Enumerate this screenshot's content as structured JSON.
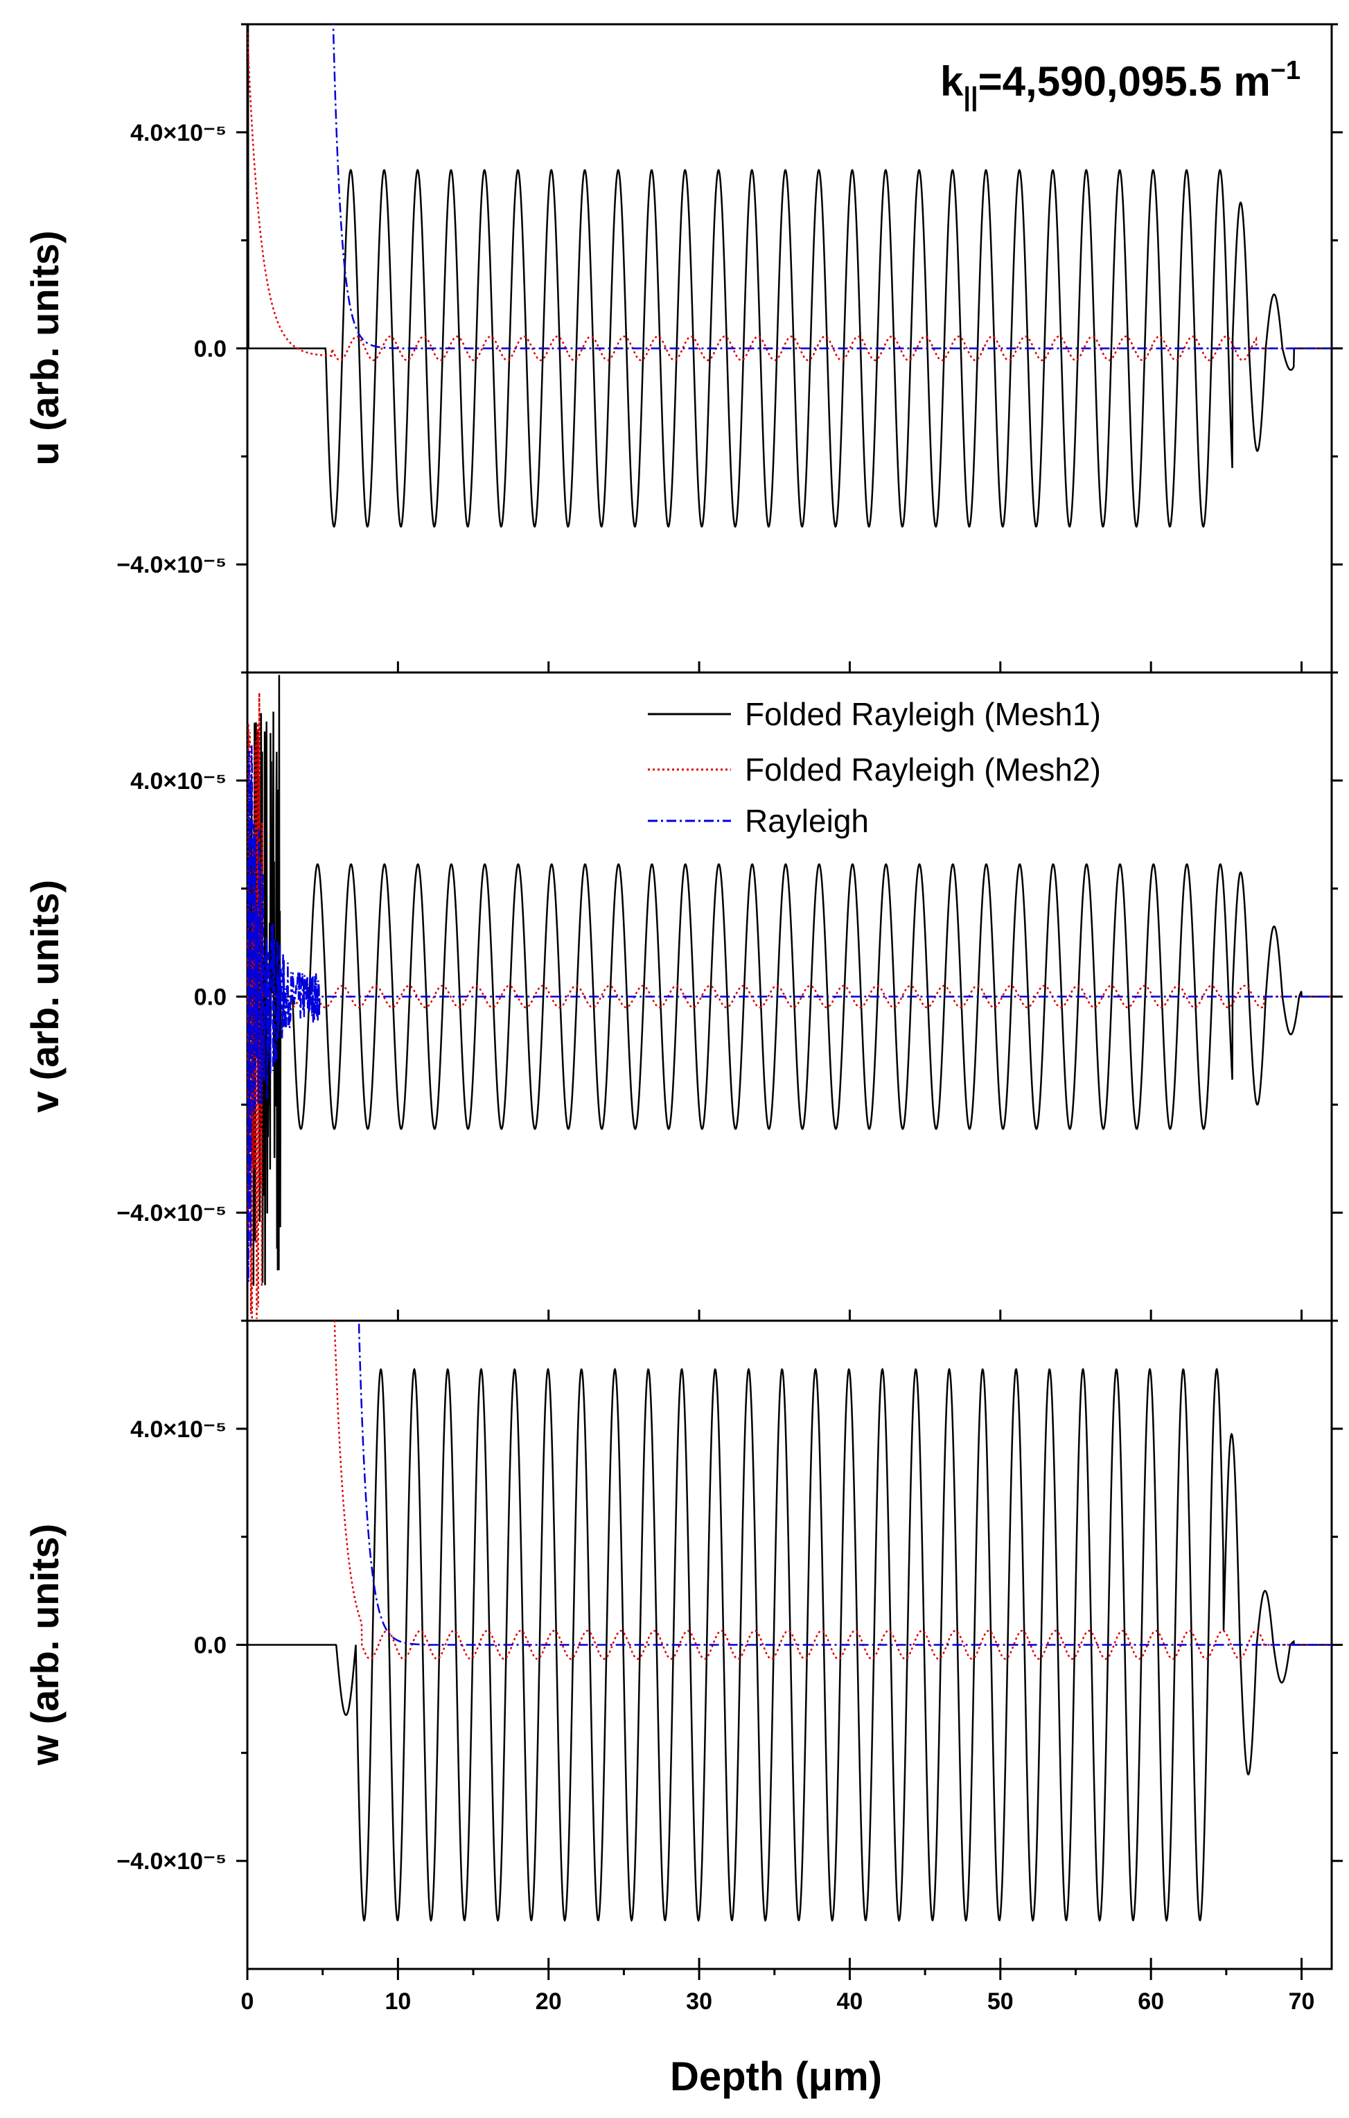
{
  "chart_data": {
    "type": "line",
    "xlabel": "Depth (μm)",
    "xlim": [
      0,
      72
    ],
    "xticks": [
      0,
      10,
      20,
      30,
      40,
      50,
      60,
      70
    ],
    "xtick_labels": [
      "0",
      "10",
      "20",
      "30",
      "40",
      "50",
      "60",
      "70"
    ],
    "annotation": {
      "prefix": "k",
      "subscript": "||",
      "value": "=4,590,095.5 m",
      "superscript": "−1"
    },
    "legend": {
      "location": "top-right of middle panel",
      "entries": [
        {
          "name": "Folded Rayleigh (Mesh1)",
          "color": "#000000",
          "dash": "solid"
        },
        {
          "name": "Folded Rayleigh (Mesh2)",
          "color": "#e00000",
          "dash": "dotted"
        },
        {
          "name": "Rayleigh",
          "color": "#0000dd",
          "dash": "dash-dot"
        }
      ]
    },
    "panels": [
      {
        "id": "u",
        "ylabel": "u (arb. units)",
        "ylim": [
          -6e-05,
          6e-05
        ],
        "yticks": [
          -4e-05,
          0.0,
          4e-05
        ],
        "ytick_labels": [
          "−4.0×10⁻⁵",
          "0.0",
          "4.0×10⁻⁵"
        ],
        "series": [
          {
            "name": "Folded Rayleigh (Mesh1)",
            "kind": "mesh1",
            "amplitude": 3.3e-05,
            "start_um": 5.2,
            "period_um": 2.22,
            "end_um": 65.4,
            "tail_peaks": [
              2.7e-05,
              -1.9e-05,
              1e-05,
              -4e-06,
              1e-06
            ],
            "tail_end_um": 69.5
          },
          {
            "name": "Folded Rayleigh (Mesh2)",
            "kind": "mesh2",
            "amplitude": 2.2e-06,
            "start_um": 5.6,
            "period_um": 2.22,
            "end_um": 67.0,
            "surface_decay_um": 0.9,
            "surface_peak": 6e-05
          },
          {
            "name": "Rayleigh",
            "kind": "rayleigh",
            "decay_end_um": 8.0,
            "surface_decay_um": 0.55,
            "surface_peak": 6e-05,
            "onset_um": 5.7
          }
        ]
      },
      {
        "id": "v",
        "ylabel": "v (arb. units)",
        "ylim": [
          -6e-05,
          6e-05
        ],
        "yticks": [
          -4e-05,
          0.0,
          4e-05
        ],
        "ytick_labels": [
          "−4.0×10⁻⁵",
          "0.0",
          "4.0×10⁻⁵"
        ],
        "series": [
          {
            "name": "Folded Rayleigh (Mesh1)",
            "kind": "mesh1",
            "amplitude": 2.45e-05,
            "start_um": 3.0,
            "period_um": 2.22,
            "end_um": 65.4,
            "tail_peaks": [
              2.3e-05,
              -2e-05,
              1.3e-05,
              -7e-06,
              2.5e-06
            ],
            "tail_end_um": 70.0,
            "noise_end_um": 2.2
          },
          {
            "name": "Folded Rayleigh (Mesh2)",
            "kind": "mesh2",
            "amplitude": 2e-06,
            "start_um": 2.4,
            "period_um": 2.22,
            "end_um": 67.5,
            "noise_end_um": 1.0
          },
          {
            "name": "Rayleigh",
            "kind": "rayleigh_noisy",
            "noise_end_um": 4.8,
            "noise_amp": 6e-05
          }
        ]
      },
      {
        "id": "w",
        "ylabel": "w (arb. units)",
        "ylim": [
          -6e-05,
          6e-05
        ],
        "yticks": [
          -4e-05,
          0.0,
          4e-05
        ],
        "ytick_labels": [
          "−4.0×10⁻⁵",
          "0.0",
          "4.0×10⁻⁵"
        ],
        "series": [
          {
            "name": "Folded Rayleigh (Mesh1)",
            "kind": "mesh1",
            "amplitude": 5.1e-05,
            "start_um": 7.2,
            "period_um": 2.22,
            "end_um": 64.8,
            "pre_dip": -1.3e-05,
            "pre_dip_um": 6.3,
            "tail_peaks": [
              3.9e-05,
              -2.4e-05,
              1e-05,
              -7e-06,
              1e-06
            ],
            "tail_end_um": 69.5
          },
          {
            "name": "Folded Rayleigh (Mesh2)",
            "kind": "mesh2",
            "amplitude": 2.6e-06,
            "start_um": 7.6,
            "period_um": 2.22,
            "end_um": 67.5,
            "surface_decay_um": 0.75,
            "surface_peak": 6e-05,
            "onset_um": 5.8
          },
          {
            "name": "Rayleigh",
            "kind": "rayleigh",
            "decay_end_um": 10.0,
            "surface_decay_um": 0.6,
            "surface_peak": 6e-05,
            "onset_um": 7.4
          }
        ]
      }
    ]
  }
}
